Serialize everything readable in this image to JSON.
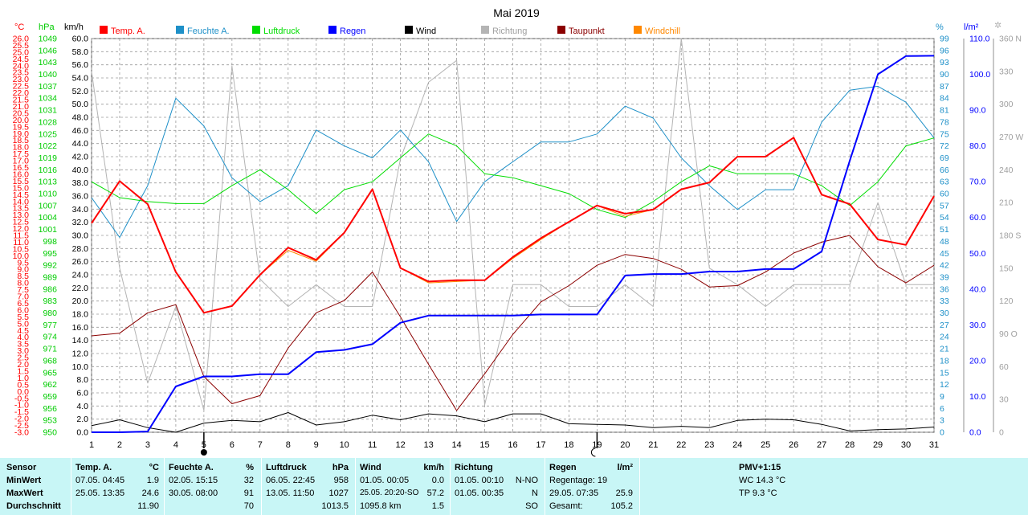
{
  "title": "Mai 2019",
  "colors": {
    "temp": "#ff0000",
    "feuchte": "#1e90c8",
    "luftdruck": "#00dd00",
    "regen": "#0000ff",
    "wind": "#000000",
    "richtung": "#b4b4b4",
    "taupunkt": "#8b0000",
    "windchill": "#ff8800",
    "axis_temp": "#ff0000",
    "axis_hpa": "#00cc00",
    "axis_kmh": "#000000",
    "axis_pct": "#1e90c8",
    "axis_lm2": "#0000ff",
    "axis_dir": "#a0a0a0",
    "grid": "#9a9a9a",
    "stats_bg": "#c8f6f6"
  },
  "chart_data": {
    "type": "line",
    "title": "Mai 2019",
    "x": [
      1,
      2,
      3,
      4,
      5,
      6,
      7,
      8,
      9,
      10,
      11,
      12,
      13,
      14,
      15,
      16,
      17,
      18,
      19,
      20,
      21,
      22,
      23,
      24,
      25,
      26,
      27,
      28,
      29,
      30,
      31
    ],
    "x_markers": [
      {
        "x": 5,
        "symbol": "new-moon"
      },
      {
        "x": 19,
        "symbol": "full-moon"
      }
    ],
    "grid": true,
    "legend_placement": "top",
    "axes": {
      "temp": {
        "unit": "°C",
        "range": [
          -3.0,
          26.0
        ],
        "step": 0.5,
        "ticks": [
          "-3.0",
          "-2.5",
          "-2.0",
          "-1.5",
          "-1.0",
          "-0.5",
          "0.0",
          "0.5",
          "1.0",
          "1.5",
          "2.0",
          "2.5",
          "3.0",
          "3.5",
          "4.0",
          "4.5",
          "5.0",
          "5.5",
          "6.0",
          "6.5",
          "7.0",
          "7.5",
          "8.0",
          "8.5",
          "9.0",
          "9.5",
          "10.0",
          "10.5",
          "11.0",
          "11.5",
          "12.0",
          "12.5",
          "13.0",
          "13.5",
          "14.0",
          "14.5",
          "15.0",
          "15.5",
          "16.0",
          "16.5",
          "17.0",
          "17.5",
          "18.0",
          "18.5",
          "19.0",
          "19.5",
          "20.0",
          "20.5",
          "21.0",
          "21.5",
          "22.0",
          "22.5",
          "23.0",
          "23.5",
          "24.0",
          "24.5",
          "25.0",
          "25.5",
          "26.0"
        ]
      },
      "hpa": {
        "unit": "hPa",
        "range": [
          950,
          1049
        ],
        "ticks": [
          "950",
          "953",
          "956",
          "959",
          "962",
          "965",
          "968",
          "971",
          "974",
          "977",
          "980",
          "983",
          "986",
          "989",
          "992",
          "995",
          "998",
          "1001",
          "1004",
          "1007",
          "1010",
          "1013",
          "1016",
          "1019",
          "1022",
          "1025",
          "1028",
          "1031",
          "1034",
          "1037",
          "1040",
          "1043",
          "1046",
          "1049"
        ]
      },
      "kmh": {
        "unit": "km/h",
        "range": [
          0.0,
          60.0
        ],
        "ticks": [
          "0.0",
          "2.0",
          "4.0",
          "6.0",
          "8.0",
          "10.0",
          "12.0",
          "14.0",
          "16.0",
          "18.0",
          "20.0",
          "22.0",
          "24.0",
          "26.0",
          "28.0",
          "30.0",
          "32.0",
          "34.0",
          "36.0",
          "38.0",
          "40.0",
          "42.0",
          "44.0",
          "46.0",
          "48.0",
          "50.0",
          "52.0",
          "54.0",
          "56.0",
          "58.0",
          "60.0"
        ]
      },
      "pct": {
        "unit": "%",
        "range": [
          0,
          99
        ],
        "ticks": [
          "0",
          "3",
          "6",
          "9",
          "12",
          "15",
          "18",
          "21",
          "24",
          "27",
          "30",
          "33",
          "36",
          "39",
          "42",
          "45",
          "48",
          "51",
          "54",
          "57",
          "60",
          "63",
          "66",
          "69",
          "72",
          "75",
          "78",
          "81",
          "84",
          "87",
          "90",
          "93",
          "96",
          "99"
        ]
      },
      "lm2": {
        "unit": "l/m²",
        "range": [
          0.0,
          110.0
        ],
        "ticks": [
          "0.0",
          "10.0",
          "20.0",
          "30.0",
          "40.0",
          "50.0",
          "60.0",
          "70.0",
          "80.0",
          "90.0",
          "100.0",
          "110.0"
        ]
      },
      "dir": {
        "range": [
          0,
          360
        ],
        "ticks": [
          "0",
          "30",
          "60",
          "90 O",
          "120",
          "150",
          "180 S",
          "210",
          "240",
          "270 W",
          "300",
          "330",
          "360 N"
        ]
      }
    },
    "series": [
      {
        "name": "Temp. A.",
        "key": "temp",
        "axis": "temp",
        "width": 2,
        "values": [
          12.4,
          15.5,
          13.8,
          8.8,
          5.8,
          6.3,
          8.6,
          10.6,
          9.7,
          11.7,
          14.9,
          9.1,
          8.1,
          8.2,
          8.2,
          9.9,
          11.3,
          12.5,
          13.7,
          13.1,
          13.4,
          14.9,
          15.4,
          17.3,
          17.3,
          18.7,
          14.5,
          13.8,
          11.2,
          10.8,
          14.4
        ]
      },
      {
        "name": "Feuchte A.",
        "key": "feuchte",
        "axis": "pct",
        "width": 1,
        "values": [
          59,
          49,
          62,
          84,
          77,
          64,
          58,
          62,
          76,
          72,
          69,
          76,
          68,
          53,
          63,
          68,
          73,
          73,
          75,
          82,
          79,
          69,
          62,
          56,
          61,
          61,
          78,
          86,
          87,
          83,
          74
        ]
      },
      {
        "name": "Luftdruck",
        "key": "luftdruck",
        "axis": "hpa",
        "width": 1,
        "values": [
          1013,
          1009,
          1008,
          1007.5,
          1007.5,
          1012,
          1016,
          1011,
          1005,
          1011,
          1013,
          1019,
          1025,
          1022,
          1015,
          1014,
          1012,
          1010,
          1006,
          1004,
          1008,
          1013,
          1017,
          1015,
          1015,
          1015,
          1012,
          1007,
          1013,
          1022,
          1024
        ]
      },
      {
        "name": "Regen",
        "key": "regen",
        "axis": "lm2",
        "width": 2,
        "values": [
          0,
          0,
          0.2,
          12.8,
          15.6,
          15.6,
          16.2,
          16.2,
          22.4,
          23.0,
          24.6,
          30.6,
          32.6,
          32.6,
          32.6,
          32.6,
          32.9,
          32.9,
          32.9,
          43.8,
          44.2,
          44.2,
          44.9,
          44.9,
          45.6,
          45.6,
          50.5,
          75.9,
          100.0,
          105.1,
          105.2
        ]
      },
      {
        "name": "Wind",
        "key": "wind",
        "axis": "kmh",
        "width": 1,
        "values": [
          1.0,
          1.9,
          0.7,
          0.0,
          1.4,
          1.8,
          1.6,
          3.0,
          1.1,
          1.6,
          2.6,
          1.9,
          2.8,
          2.5,
          1.6,
          2.8,
          2.8,
          1.3,
          1.2,
          1.1,
          0.7,
          0.9,
          0.7,
          1.8,
          2.0,
          1.9,
          1.2,
          0.2,
          0.4,
          0.5,
          0.8
        ]
      },
      {
        "name": "Richtung",
        "key": "richtung",
        "axis": "dir",
        "width": 1,
        "values": [
          330,
          150,
          45,
          115,
          20,
          335,
          140,
          115,
          135,
          115,
          115,
          250,
          320,
          340,
          25,
          135,
          135,
          115,
          115,
          135,
          115,
          360,
          150,
          135,
          115,
          135,
          135,
          135,
          210,
          135,
          135
        ]
      },
      {
        "name": "Taupunkt",
        "key": "taupunkt",
        "axis": "temp",
        "width": 1,
        "values": [
          4.1,
          4.3,
          5.8,
          6.4,
          1.1,
          -0.9,
          -0.3,
          3.2,
          5.8,
          6.7,
          8.8,
          5.5,
          2.0,
          -1.4,
          1.3,
          4.2,
          6.6,
          7.8,
          9.3,
          10.1,
          9.8,
          9.0,
          7.7,
          7.8,
          8.8,
          10.2,
          11.0,
          11.5,
          9.2,
          8.0,
          9.3
        ]
      },
      {
        "name": "Windchill",
        "key": "windchill",
        "axis": "temp",
        "width": 1,
        "values": [
          12.4,
          15.5,
          13.8,
          8.8,
          5.8,
          6.3,
          8.6,
          10.4,
          9.6,
          11.7,
          14.9,
          9.1,
          8.0,
          8.1,
          8.2,
          9.8,
          11.2,
          12.5,
          13.7,
          12.9,
          13.4,
          14.9,
          15.4,
          17.3,
          17.3,
          18.7,
          14.5,
          13.8,
          11.2,
          10.8,
          14.4
        ]
      }
    ]
  },
  "stats": {
    "sensor": {
      "header": "Sensor",
      "min": "MinWert",
      "max": "MaxWert",
      "avg": "Durchschnitt"
    },
    "temp": {
      "header": "Temp. A.",
      "unit": "°C",
      "min_date": "07.05.  04:45",
      "min_val": "1.9",
      "max_date": "25.05.  13:35",
      "max_val": "24.6",
      "avg_val": "11.90"
    },
    "feuchte": {
      "header": "Feuchte A.",
      "unit": "%",
      "min_date": "02.05.  15:15",
      "min_val": "32",
      "max_date": "30.05.  08:00",
      "max_val": "91",
      "avg_val": "70"
    },
    "luftdruck": {
      "header": "Luftdruck",
      "unit": "hPa",
      "min_date": "06.05.  22:45",
      "min_val": "958",
      "max_date": "13.05.  11:50",
      "max_val": "1027",
      "avg_val": "1013.5"
    },
    "wind": {
      "header": "Wind",
      "unit": "km/h",
      "min_date": "01.05.  00:05",
      "min_val": "0.0",
      "max_date": "25.05.  20:20-SO",
      "max_val": "57.2",
      "avg_date": "1095.8 km",
      "avg_val": "1.5"
    },
    "richtung": {
      "header": "Richtung",
      "min_date": "01.05.  00:10",
      "min_val": "N-NO",
      "max_date": "01.05.  00:35",
      "max_val": "N",
      "avg_val": "SO"
    },
    "regen": {
      "header": "Regen",
      "unit": "l/m²",
      "row1": "Regentage: 19",
      "max_date": "29.05.  07:35",
      "max_val": "25.9",
      "avg_label": "Gesamt:",
      "avg_val": "105.2"
    },
    "pmv": {
      "header": "PMV+1:15",
      "wc": "WC 14.3 °C",
      "tp": "TP 9.3 °C"
    }
  }
}
